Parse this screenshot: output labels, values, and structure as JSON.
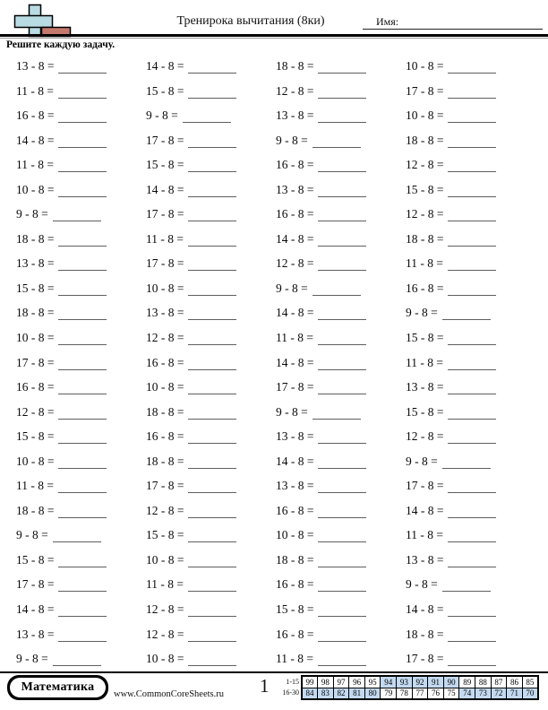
{
  "header": {
    "title": "Тренирока вычитания (8ки)",
    "name_label": "Имя:",
    "instruction": "Решите каждую задачу."
  },
  "logo": {
    "plus_color": "#b9dbe3",
    "bar_color": "#c5796d",
    "outline_color": "#000000"
  },
  "problems": {
    "subtrahend": 8,
    "columns": [
      [
        "13 - 8 =",
        "11 - 8 =",
        "16 - 8 =",
        "14 - 8 =",
        "11 - 8 =",
        "10 - 8 =",
        "9 - 8 =",
        "18 - 8 =",
        "13 - 8 =",
        "15 - 8 =",
        "18 - 8 =",
        "10 - 8 =",
        "17 - 8 =",
        "16 - 8 =",
        "12 - 8 =",
        "15 - 8 =",
        "10 - 8 =",
        "11 - 8 =",
        "18 - 8 =",
        "9 - 8 =",
        "15 - 8 =",
        "17 - 8 =",
        "14 - 8 =",
        "13 - 8 =",
        "9 - 8 ="
      ],
      [
        "14 - 8 =",
        "15 - 8 =",
        "9 - 8 =",
        "17 - 8 =",
        "15 - 8 =",
        "14 - 8 =",
        "17 - 8 =",
        "11 - 8 =",
        "17 - 8 =",
        "10 - 8 =",
        "13 - 8 =",
        "12 - 8 =",
        "16 - 8 =",
        "10 - 8 =",
        "18 - 8 =",
        "16 - 8 =",
        "18 - 8 =",
        "17 - 8 =",
        "12 - 8 =",
        "15 - 8 =",
        "10 - 8 =",
        "11 - 8 =",
        "12 - 8 =",
        "12 - 8 =",
        "10 - 8 ="
      ],
      [
        "18 - 8 =",
        "12 - 8 =",
        "13 - 8 =",
        "9 - 8 =",
        "16 - 8 =",
        "13 - 8 =",
        "16 - 8 =",
        "14 - 8 =",
        "12 - 8 =",
        "9 - 8 =",
        "14 - 8 =",
        "11 - 8 =",
        "14 - 8 =",
        "17 - 8 =",
        "9 - 8 =",
        "13 - 8 =",
        "14 - 8 =",
        "13 - 8 =",
        "16 - 8 =",
        "10 - 8 =",
        "18 - 8 =",
        "16 - 8 =",
        "15 - 8 =",
        "16 - 8 =",
        "11 - 8 ="
      ],
      [
        "10 - 8 =",
        "17 - 8 =",
        "10 - 8 =",
        "18 - 8 =",
        "12 - 8 =",
        "15 - 8 =",
        "12 - 8 =",
        "18 - 8 =",
        "11 - 8 =",
        "16 - 8 =",
        "9 - 8 =",
        "15 - 8 =",
        "11 - 8 =",
        "13 - 8 =",
        "15 - 8 =",
        "12 - 8 =",
        "9 - 8 =",
        "17 - 8 =",
        "14 - 8 =",
        "11 - 8 =",
        "13 - 8 =",
        "9 - 8 =",
        "14 - 8 =",
        "18 - 8 =",
        "17 - 8 ="
      ]
    ]
  },
  "footer": {
    "brand": "Математика",
    "website": "www.CommonCoreSheets.ru",
    "page_number": "1",
    "score_table": {
      "shaded_color": "#c3d9f0",
      "row_labels": [
        "1-15",
        "16-30"
      ],
      "rows": [
        {
          "cells": [
            {
              "v": "99",
              "shaded": false
            },
            {
              "v": "98",
              "shaded": false
            },
            {
              "v": "97",
              "shaded": false
            },
            {
              "v": "96",
              "shaded": false
            },
            {
              "v": "95",
              "shaded": false
            },
            {
              "v": "94",
              "shaded": true
            },
            {
              "v": "93",
              "shaded": true
            },
            {
              "v": "92",
              "shaded": true
            },
            {
              "v": "91",
              "shaded": true
            },
            {
              "v": "90",
              "shaded": true
            },
            {
              "v": "89",
              "shaded": false
            },
            {
              "v": "88",
              "shaded": false
            },
            {
              "v": "87",
              "shaded": false
            },
            {
              "v": "86",
              "shaded": false
            },
            {
              "v": "85",
              "shaded": false
            }
          ]
        },
        {
          "cells": [
            {
              "v": "84",
              "shaded": true
            },
            {
              "v": "83",
              "shaded": true
            },
            {
              "v": "82",
              "shaded": true
            },
            {
              "v": "81",
              "shaded": true
            },
            {
              "v": "80",
              "shaded": true
            },
            {
              "v": "79",
              "shaded": false
            },
            {
              "v": "78",
              "shaded": false
            },
            {
              "v": "77",
              "shaded": false
            },
            {
              "v": "76",
              "shaded": false
            },
            {
              "v": "75",
              "shaded": false
            },
            {
              "v": "74",
              "shaded": true
            },
            {
              "v": "73",
              "shaded": true
            },
            {
              "v": "72",
              "shaded": true
            },
            {
              "v": "71",
              "shaded": true
            },
            {
              "v": "70",
              "shaded": true
            }
          ]
        }
      ]
    }
  }
}
